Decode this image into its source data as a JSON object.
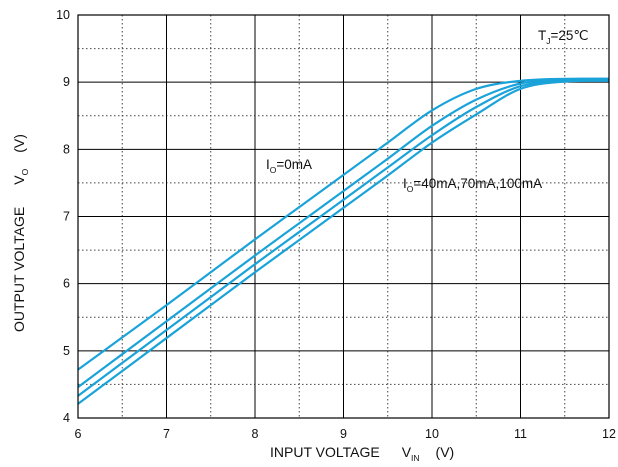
{
  "chart_data": {
    "type": "line",
    "title": "",
    "xlabel": {
      "main": "INPUT VOLTAGE",
      "symbol": "V",
      "subscript": "IN",
      "unit": "(V)"
    },
    "ylabel": {
      "main": "OUTPUT VOLTAGE",
      "symbol": "V",
      "subscript": "O",
      "unit": "(V)"
    },
    "xlim": [
      6,
      12
    ],
    "ylim": [
      4,
      10
    ],
    "x_ticks": [
      "6",
      "7",
      "8",
      "9",
      "10",
      "11",
      "12"
    ],
    "y_ticks": [
      "4",
      "5",
      "6",
      "7",
      "8",
      "9",
      "10"
    ],
    "grid": {
      "major": "solid",
      "minor": "dotted"
    },
    "line_color": "#1aa3d9",
    "annotations": {
      "condition": {
        "prefix": "T",
        "subscript": "J",
        "text": "=25℃"
      },
      "curve_top": {
        "prefix": "I",
        "subscript": "O",
        "text": "=0mA"
      },
      "curve_rest": {
        "prefix": "I",
        "subscript": "O",
        "text": "=40mA,70mA,100mA"
      }
    },
    "series": [
      {
        "x": [
          6,
          6.5,
          7,
          7.5,
          8,
          8.5,
          9,
          9.5,
          10,
          10.5,
          11,
          11.5,
          12
        ],
        "y": [
          4.72,
          5.2,
          5.68,
          6.17,
          6.66,
          7.14,
          7.62,
          8.1,
          8.58,
          8.9,
          9.02,
          9.05,
          9.05
        ]
      },
      {
        "x": [
          6,
          6.5,
          7,
          7.5,
          8,
          8.5,
          9,
          9.5,
          10,
          10.5,
          11,
          11.5,
          12
        ],
        "y": [
          4.46,
          4.95,
          5.44,
          5.93,
          6.42,
          6.9,
          7.38,
          7.86,
          8.35,
          8.74,
          8.98,
          9.04,
          9.05
        ]
      },
      {
        "x": [
          6,
          6.5,
          7,
          7.5,
          8,
          8.5,
          9,
          9.5,
          10,
          10.5,
          11,
          11.5,
          12
        ],
        "y": [
          4.33,
          4.82,
          5.31,
          5.8,
          6.29,
          6.77,
          7.25,
          7.73,
          8.21,
          8.63,
          8.94,
          9.02,
          9.03
        ]
      },
      {
        "x": [
          6,
          6.5,
          7,
          7.5,
          8,
          8.5,
          9,
          9.5,
          10,
          10.5,
          11,
          11.5,
          12
        ],
        "y": [
          4.21,
          4.7,
          5.19,
          5.68,
          6.17,
          6.65,
          7.13,
          7.61,
          8.1,
          8.52,
          8.9,
          9.01,
          9.02
        ]
      }
    ]
  }
}
